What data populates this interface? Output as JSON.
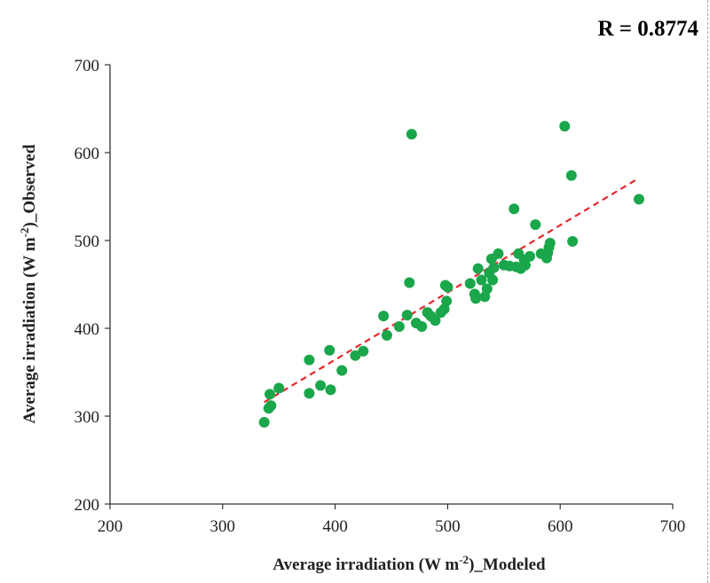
{
  "chart_data": {
    "type": "scatter",
    "title": "",
    "annotation": "R = 0.8774",
    "xlabel": {
      "prefix": "Average irradiation (W m",
      "sup": "-2",
      "suffix": ")_Modeled"
    },
    "ylabel": {
      "prefix": "Average irradiation (W m",
      "sup": "-2",
      "suffix": ")_Observed"
    },
    "xlim": [
      200,
      700
    ],
    "ylim": [
      200,
      700
    ],
    "xticks": [
      "200",
      "300",
      "400",
      "500",
      "600",
      "700"
    ],
    "yticks": [
      "200",
      "300",
      "400",
      "500",
      "600",
      "700"
    ],
    "grid": false,
    "point_color": "#1aa64b",
    "trend_color": "#e8262b",
    "trendline": {
      "x": [
        337,
        670
      ],
      "y": [
        316,
        571
      ]
    },
    "series": [
      {
        "points": [
          [
            337,
            293
          ],
          [
            341,
            309
          ],
          [
            342,
            325
          ],
          [
            343,
            312
          ],
          [
            350,
            332
          ],
          [
            377,
            364
          ],
          [
            377,
            326
          ],
          [
            387,
            335
          ],
          [
            395,
            375
          ],
          [
            396,
            330
          ],
          [
            406,
            352
          ],
          [
            418,
            369
          ],
          [
            425,
            374
          ],
          [
            443,
            414
          ],
          [
            446,
            392
          ],
          [
            457,
            402
          ],
          [
            464,
            415
          ],
          [
            466,
            452
          ],
          [
            468,
            621
          ],
          [
            472,
            406
          ],
          [
            477,
            402
          ],
          [
            482,
            418
          ],
          [
            485,
            414
          ],
          [
            489,
            409
          ],
          [
            494,
            418
          ],
          [
            497,
            422
          ],
          [
            498,
            449
          ],
          [
            499,
            431
          ],
          [
            500,
            447
          ],
          [
            520,
            451
          ],
          [
            524,
            439
          ],
          [
            525,
            434
          ],
          [
            527,
            468
          ],
          [
            530,
            455
          ],
          [
            533,
            436
          ],
          [
            535,
            445
          ],
          [
            537,
            463
          ],
          [
            539,
            479
          ],
          [
            540,
            455
          ],
          [
            541,
            469
          ],
          [
            545,
            485
          ],
          [
            550,
            472
          ],
          [
            555,
            471
          ],
          [
            559,
            536
          ],
          [
            561,
            470
          ],
          [
            563,
            485
          ],
          [
            565,
            468
          ],
          [
            568,
            478
          ],
          [
            569,
            472
          ],
          [
            573,
            482
          ],
          [
            578,
            518
          ],
          [
            583,
            485
          ],
          [
            588,
            480
          ],
          [
            589,
            486
          ],
          [
            590,
            492
          ],
          [
            591,
            497
          ],
          [
            604,
            630
          ],
          [
            610,
            574
          ],
          [
            611,
            499
          ],
          [
            670,
            547
          ]
        ]
      }
    ]
  }
}
